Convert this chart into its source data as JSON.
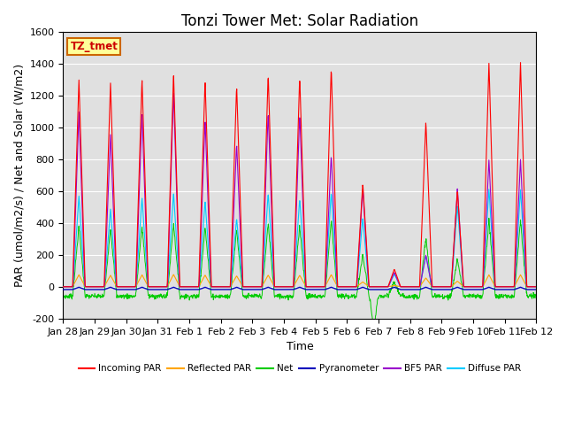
{
  "title": "Tonzi Tower Met: Solar Radiation",
  "ylabel": "PAR (umol/m2/s) / Net and Solar (W/m2)",
  "xlabel": "Time",
  "ylim": [
    -200,
    1600
  ],
  "xlim": [
    0,
    15
  ],
  "x_tick_labels": [
    "Jan 28",
    "Jan 29",
    "Jan 30",
    "Jan 31",
    "Feb 1",
    "Feb 2",
    "Feb 3",
    "Feb 4",
    "Feb 5",
    "Feb 6",
    "Feb 7",
    "Feb 8",
    "Feb 9",
    "Feb 10",
    "Feb 11",
    "Feb 12"
  ],
  "x_tick_positions": [
    0,
    1,
    2,
    3,
    4,
    5,
    6,
    7,
    8,
    9,
    10,
    11,
    12,
    13,
    14,
    15
  ],
  "yticks": [
    -200,
    0,
    200,
    400,
    600,
    800,
    1000,
    1200,
    1400,
    1600
  ],
  "legend_colors": [
    "#ff0000",
    "#ffa500",
    "#00cc00",
    "#0000bb",
    "#9900cc",
    "#00ccff"
  ],
  "legend_labels": [
    "Incoming PAR",
    "Reflected PAR",
    "Net",
    "Pyranometer",
    "BF5 PAR",
    "Diffuse PAR"
  ],
  "box_label": "TZ_tmet",
  "box_color": "#ffff99",
  "box_border": "#cc6600",
  "bg_color": "#e0e0e0",
  "title_fontsize": 12,
  "axis_label_fontsize": 9,
  "tick_fontsize": 8
}
